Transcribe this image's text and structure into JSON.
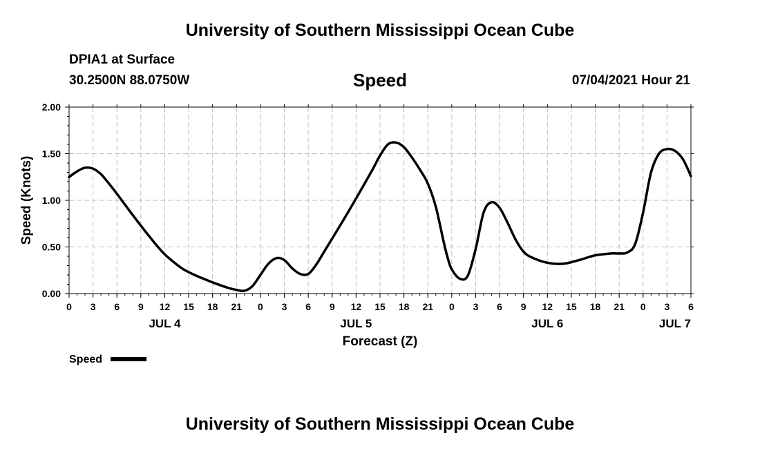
{
  "header": {
    "title": "University of Southern Mississippi Ocean Cube",
    "station": "DPIA1 at Surface",
    "coordinates": "30.2500N  88.0750W",
    "timestamp": "07/04/2021 Hour 21"
  },
  "footer": {
    "title": "University of Southern Mississippi Ocean Cube"
  },
  "chart_data": {
    "type": "line",
    "title": "Speed",
    "xlabel": "Forecast (Z)",
    "ylabel": "Speed (Knots)",
    "xlim": [
      0,
      78
    ],
    "ylim": [
      0,
      2
    ],
    "grid": true,
    "y_ticks": [
      "0.00",
      "0.50",
      "1.00",
      "1.50",
      "2.00"
    ],
    "x_tick_hours": [
      0,
      3,
      6,
      9,
      12,
      15,
      18,
      21,
      24,
      27,
      30,
      33,
      36,
      39,
      42,
      45,
      48,
      51,
      54,
      57,
      60,
      63,
      66,
      69,
      72,
      75,
      78
    ],
    "x_tick_labels": [
      "0",
      "3",
      "6",
      "9",
      "12",
      "15",
      "18",
      "21",
      "0",
      "3",
      "6",
      "9",
      "12",
      "15",
      "18",
      "21",
      "0",
      "3",
      "6",
      "9",
      "12",
      "15",
      "18",
      "21",
      "0",
      "3",
      "6"
    ],
    "day_labels": [
      {
        "hour": 12,
        "label": "JUL 4"
      },
      {
        "hour": 36,
        "label": "JUL 5"
      },
      {
        "hour": 60,
        "label": "JUL 6"
      },
      {
        "hour": 76,
        "label": "JUL 7"
      }
    ],
    "legend": {
      "label": "Speed",
      "position": "bottom-left"
    },
    "series": [
      {
        "name": "Speed",
        "color": "#000000",
        "x": [
          0,
          1,
          2,
          3,
          4,
          5,
          6,
          8,
          10,
          12,
          14,
          15,
          16,
          18,
          20,
          21,
          22,
          23,
          24,
          25,
          26,
          27,
          28,
          29,
          30,
          31,
          32,
          34,
          36,
          38,
          39,
          40,
          41,
          42,
          43,
          44,
          45,
          46,
          47,
          47.5,
          48,
          49,
          50,
          51,
          52,
          53,
          54,
          55,
          56,
          57,
          58,
          60,
          62,
          64,
          66,
          68,
          69,
          70,
          71,
          72,
          73,
          74,
          75,
          76,
          77,
          78
        ],
        "y": [
          1.25,
          1.31,
          1.35,
          1.34,
          1.28,
          1.18,
          1.07,
          0.84,
          0.62,
          0.42,
          0.28,
          0.23,
          0.19,
          0.12,
          0.06,
          0.04,
          0.03,
          0.08,
          0.2,
          0.32,
          0.38,
          0.36,
          0.27,
          0.21,
          0.21,
          0.31,
          0.45,
          0.73,
          1.02,
          1.32,
          1.48,
          1.6,
          1.62,
          1.57,
          1.46,
          1.33,
          1.18,
          0.93,
          0.55,
          0.38,
          0.26,
          0.16,
          0.19,
          0.48,
          0.87,
          0.98,
          0.92,
          0.76,
          0.58,
          0.45,
          0.39,
          0.33,
          0.32,
          0.36,
          0.41,
          0.43,
          0.43,
          0.44,
          0.53,
          0.87,
          1.3,
          1.5,
          1.55,
          1.53,
          1.44,
          1.26
        ]
      }
    ]
  }
}
